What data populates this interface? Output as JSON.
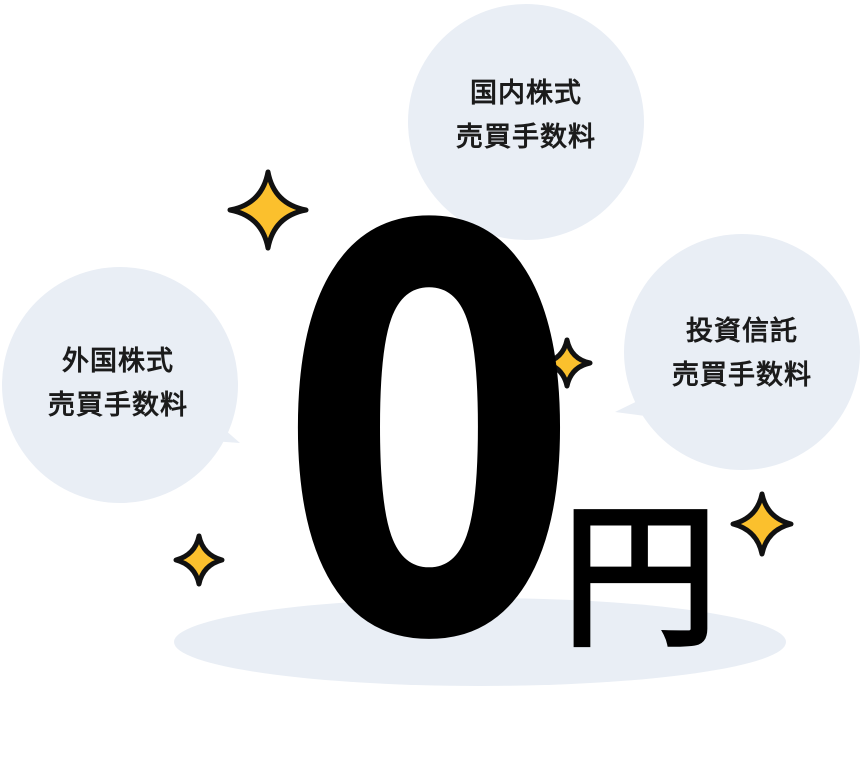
{
  "bubbles": {
    "domestic_stocks": {
      "line1": "国内株式",
      "line2": "売買手数料"
    },
    "foreign_stocks": {
      "line1": "外国株式",
      "line2": "売買手数料"
    },
    "investment_trusts": {
      "line1": "投資信託",
      "line2": "売買手数料"
    }
  },
  "headline": {
    "amount": "0",
    "unit": "円"
  },
  "colors": {
    "bubble": "#e9eef5",
    "shadow": "#e9eef5",
    "sparkle_fill": "#fbc02d",
    "sparkle_stroke": "#111111",
    "text": "#000000"
  },
  "icons": [
    "sparkle-icon",
    "speech-bubble"
  ]
}
